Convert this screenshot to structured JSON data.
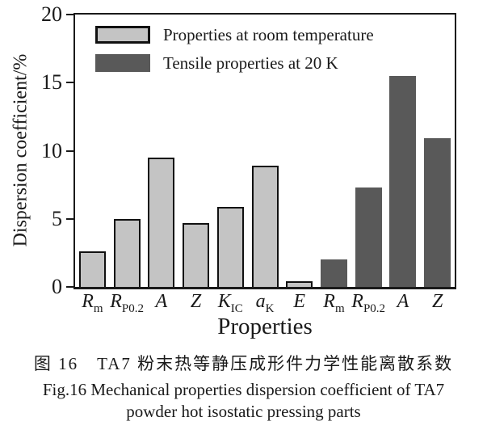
{
  "figure": {
    "caption_zh": "图 16　TA7 粉末热等静压成形件力学性能离散系数",
    "caption_en_line1": "Fig.16 Mechanical properties dispersion coefficient of TA7",
    "caption_en_line2": "powder hot isostatic pressing parts"
  },
  "chart_data": {
    "type": "bar",
    "title": "",
    "xlabel": "Properties",
    "ylabel": "Dispersion coefficient/%",
    "ylim": [
      0,
      20
    ],
    "yticks": [
      0,
      5,
      10,
      15,
      20
    ],
    "grid": false,
    "legend_position": "top-left-inside",
    "series": [
      {
        "name": "Properties at room temperature",
        "color": "#c4c4c4",
        "border_color": "#111111"
      },
      {
        "name": "Tensile properties at 20 K",
        "color": "#595959",
        "border_color": "#595959"
      }
    ],
    "bars": [
      {
        "label": "Rm",
        "label_main": "R",
        "label_sub": "m",
        "value": 2.6,
        "series": 0
      },
      {
        "label": "RP0.2",
        "label_main": "R",
        "label_sub": "P0.2",
        "value": 5.0,
        "series": 0
      },
      {
        "label": "A",
        "label_main": "A",
        "label_sub": "",
        "value": 9.5,
        "series": 0
      },
      {
        "label": "Z",
        "label_main": "Z",
        "label_sub": "",
        "value": 4.7,
        "series": 0
      },
      {
        "label": "KIC",
        "label_main": "K",
        "label_sub": "IC",
        "value": 5.9,
        "series": 0
      },
      {
        "label": "aK",
        "label_main": "a",
        "label_sub": "K",
        "value": 8.9,
        "series": 0
      },
      {
        "label": "E",
        "label_main": "E",
        "label_sub": "",
        "value": 0.4,
        "series": 0
      },
      {
        "label": "Rm",
        "label_main": "R",
        "label_sub": "m",
        "value": 2.0,
        "series": 1
      },
      {
        "label": "RP0.2",
        "label_main": "R",
        "label_sub": "P0.2",
        "value": 7.3,
        "series": 1
      },
      {
        "label": "A",
        "label_main": "A",
        "label_sub": "",
        "value": 15.5,
        "series": 1
      },
      {
        "label": "Z",
        "label_main": "Z",
        "label_sub": "",
        "value": 10.9,
        "series": 1
      }
    ]
  }
}
